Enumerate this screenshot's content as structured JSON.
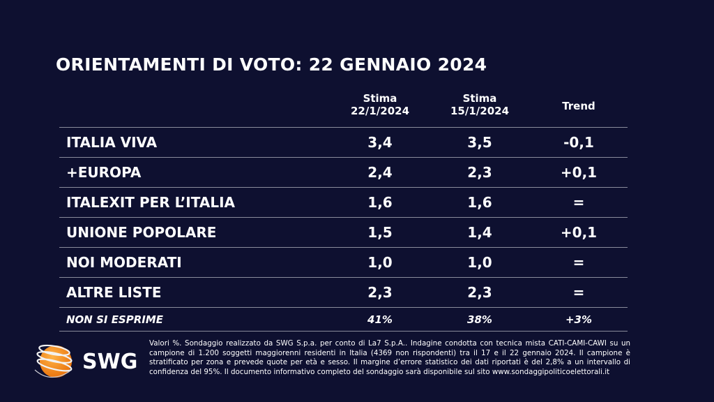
{
  "title": "ORIENTAMENTI DI VOTO: 22 GENNAIO 2024",
  "columns": [
    {
      "line1": "Stima",
      "line2": "22/1/2024"
    },
    {
      "line1": "Stima",
      "line2": "15/1/2024"
    },
    {
      "line1": "Trend",
      "line2": ""
    }
  ],
  "rows": [
    {
      "name": "ITALIA VIVA",
      "current": "3,4",
      "previous": "3,5",
      "trend": "-0,1"
    },
    {
      "name": "+EUROPA",
      "current": "2,4",
      "previous": "2,3",
      "trend": "+0,1"
    },
    {
      "name": "ITALEXIT PER L’ITALIA",
      "current": "1,6",
      "previous": "1,6",
      "trend": "="
    },
    {
      "name": "UNIONE POPOLARE",
      "current": "1,5",
      "previous": "1,4",
      "trend": "+0,1"
    },
    {
      "name": "NOI MODERATI",
      "current": "1,0",
      "previous": "1,0",
      "trend": "="
    },
    {
      "name": "ALTRE LISTE",
      "current": "2,3",
      "previous": "2,3",
      "trend": "="
    },
    {
      "name": "NON SI ESPRIME",
      "current": "41%",
      "previous": "38%",
      "trend": "+3%"
    }
  ],
  "logo": {
    "text": "SWG",
    "accent": "#f39a1e"
  },
  "footnote": "Valori %. Sondaggio realizzato da SWG S.p.a. per conto di La7 S.p.A.. Indagine condotta con tecnica mista CATI-CAMI-CAWI su un campione di 1.200 soggetti maggiorenni residenti in Italia (4369 non rispondenti) tra il 17 e il 22 gennaio 2024. Il campione è stratificato per zona e prevede quote per età e sesso. Il margine d’errore statistico dei dati riportati è del 2,8% a un intervallo di confidenza del 95%. Il documento informativo completo del sondaggio sarà disponibile sul sito www.sondaggipoliticoelettorali.it"
}
